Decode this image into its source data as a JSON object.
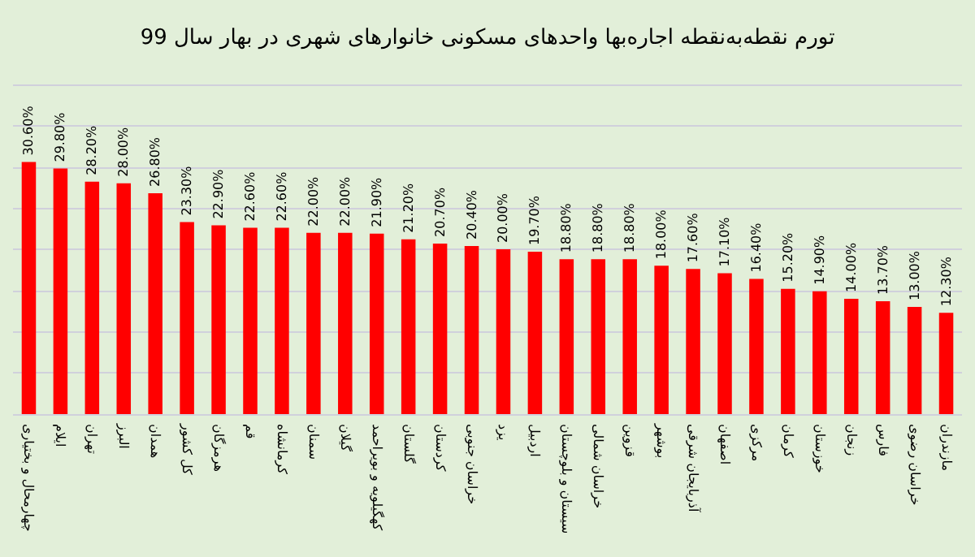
{
  "chart_data": {
    "type": "bar",
    "title": "تورم نقطه‌به‌نقطه اجاره‌بها واحدهای مسکونی خانوارهای شهری در بهار سال 99",
    "categories": [
      "چهارمحال و بختیاری",
      "ایلام",
      "تهران",
      "البرز",
      "همدان",
      "کل کشور",
      "هرمزگان",
      "قم",
      "کرمانشاه",
      "سمنان",
      "گیلان",
      "کهگیلویه و بویراحمد",
      "گلستان",
      "کردستان",
      "خراسان جنوبی",
      "یزد",
      "اردبیل",
      "سیستان و بلوچستان",
      "خراسان شمالی",
      "قزوین",
      "بوشهر",
      "آذربایجان شرقی",
      "اصفهان",
      "مرکزی",
      "کرمان",
      "خوزستان",
      "زنجان",
      "فارس",
      "خراسان رضوی",
      "مازندران"
    ],
    "values": [
      30.6,
      29.8,
      28.2,
      28.0,
      26.8,
      23.3,
      22.9,
      22.6,
      22.6,
      22.0,
      22.0,
      21.9,
      21.2,
      20.7,
      20.4,
      20.0,
      19.7,
      18.8,
      18.8,
      18.8,
      18.0,
      17.6,
      17.1,
      16.4,
      15.2,
      14.9,
      14.0,
      13.7,
      13.0,
      12.3
    ],
    "value_labels": [
      "30.60%",
      "29.80%",
      "28.20%",
      "28.00%",
      "26.80%",
      "23.30%",
      "22.90%",
      "22.60%",
      "22.60%",
      "22.00%",
      "22.00%",
      "21.90%",
      "21.20%",
      "20.70%",
      "20.40%",
      "20.00%",
      "19.70%",
      "18.80%",
      "18.80%",
      "18.80%",
      "18.00%",
      "17.60%",
      "17.10%",
      "16.40%",
      "15.20%",
      "14.90%",
      "14.00%",
      "13.70%",
      "13.00%",
      "12.30%"
    ],
    "color": "#ff0000",
    "ylim": [
      0,
      40
    ],
    "yticks": [
      {
        "value": 0,
        "label": null
      },
      {
        "value": 5,
        "label": null
      },
      {
        "value": 10,
        "label": null
      },
      {
        "value": 15,
        "label": null
      },
      {
        "value": 20,
        "label": null
      },
      {
        "value": 25,
        "label": null
      },
      {
        "value": 30,
        "label": null
      },
      {
        "value": 35,
        "label": null
      },
      {
        "value": 40,
        "label": null
      }
    ],
    "tick_labels": "x",
    "grid": "y"
  }
}
